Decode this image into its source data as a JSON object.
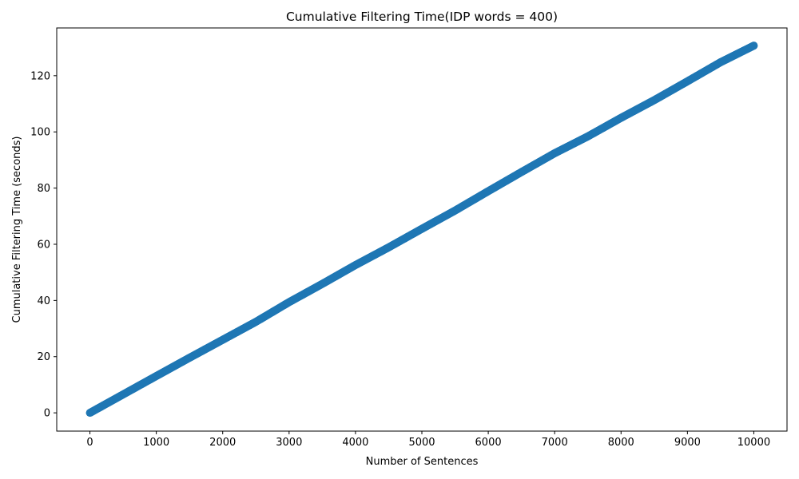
{
  "chart_data": {
    "type": "scatter",
    "title": "Cumulative Filtering Time(IDP words = 400)",
    "xlabel": "Number of Sentences",
    "ylabel": "Cumulative Filtering Time (seconds)",
    "xlim": [
      -500,
      10500
    ],
    "ylim": [
      -6.5,
      137
    ],
    "xticks": [
      0,
      1000,
      2000,
      3000,
      4000,
      5000,
      6000,
      7000,
      8000,
      9000,
      10000
    ],
    "yticks": [
      0,
      20,
      40,
      60,
      80,
      100,
      120
    ],
    "grid": false,
    "marker_color": "#1f77b4",
    "x_range": [
      0,
      10000
    ],
    "series": [
      {
        "x": [
          0,
          1000,
          1500,
          2000,
          2500,
          3000,
          3500,
          4000,
          4500,
          5000,
          5500,
          6000,
          6500,
          7000,
          7500,
          8000,
          8500,
          9000,
          9500,
          10000
        ],
        "y": [
          0,
          13.1,
          19.6,
          26.0,
          32.4,
          39.4,
          45.9,
          52.6,
          58.9,
          65.5,
          72.0,
          78.9,
          85.7,
          92.4,
          98.4,
          105.0,
          111.3,
          118.0,
          124.8,
          130.7
        ]
      }
    ]
  }
}
